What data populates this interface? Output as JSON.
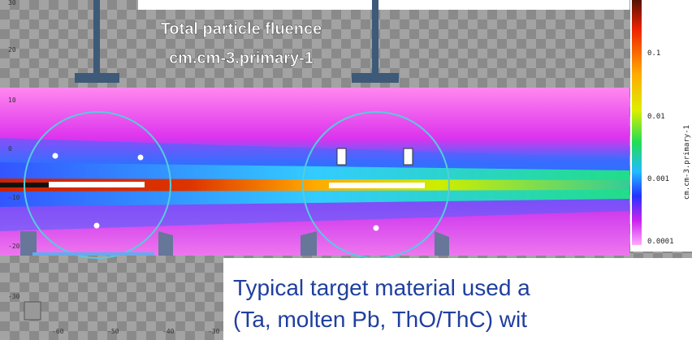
{
  "title": {
    "line1": "Total particle fluence",
    "line2": "cm.cm-3.primary-1"
  },
  "colorbar": {
    "label": "cm.cm-3.primary-1",
    "ticks": [
      "0.1",
      "0.01",
      "0.001",
      "0.0001"
    ]
  },
  "axes": {
    "y_ticks": [
      "30",
      "20",
      "10",
      "0",
      "-10",
      "-20",
      "-30"
    ],
    "x_ticks": [
      "-60",
      "-50",
      "-40",
      "-30"
    ]
  },
  "overlay": {
    "line1": "Typical target material used a",
    "line2": "(Ta, molten Pb, ThO/ThC) wit"
  }
}
